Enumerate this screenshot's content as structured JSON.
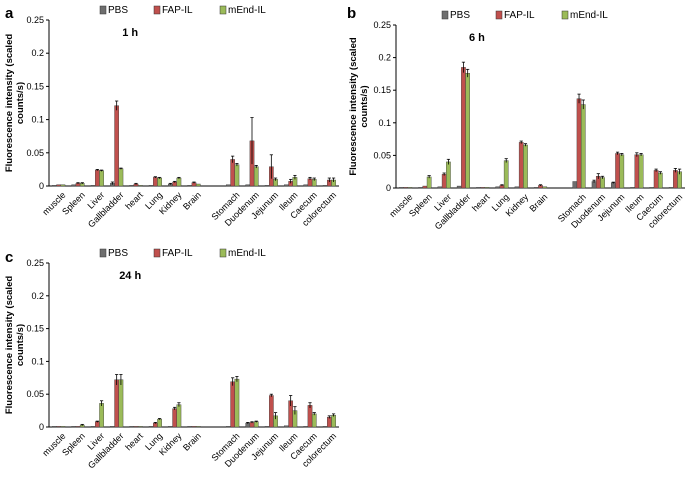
{
  "chart_data": [
    {
      "type": "bar",
      "panel": "a",
      "title": "1 h",
      "ylabel": "Fluorescence intensity (scaled counts/s)",
      "ylim": [
        0,
        0.25
      ],
      "yticks": [
        "0",
        "0.05",
        "0.1",
        "0.15",
        "0.2",
        "0.25"
      ],
      "categories": [
        "muscle",
        "Spleen",
        "Liver",
        "Gallbladder",
        "heart",
        "Lung",
        "Kidney",
        "Brain",
        "",
        "Stomach",
        "Duodenum",
        "Jejunum",
        "Ileum",
        "Caecum",
        "colorectum"
      ],
      "series": [
        {
          "name": "PBS",
          "color": "#6e6e6e",
          "values": [
            0.001,
            0.002,
            0.001,
            0.004,
            0.001,
            0.001,
            0.003,
            0.001,
            null,
            0.002,
            0.002,
            0.001,
            0.002,
            0.002,
            0.001
          ],
          "errors": [
            0,
            0,
            0,
            0.002,
            0,
            0,
            0.001,
            0,
            null,
            0,
            0,
            0,
            0,
            0,
            0
          ]
        },
        {
          "name": "FAP-IL",
          "color": "#c0504d",
          "values": [
            0.002,
            0.004,
            0.024,
            0.121,
            0.003,
            0.013,
            0.006,
            0.005,
            null,
            0.04,
            0.068,
            0.029,
            0.007,
            0.011,
            0.009
          ],
          "errors": [
            0,
            0.001,
            0.001,
            0.007,
            0.001,
            0.001,
            0.001,
            0.001,
            null,
            0.005,
            0.035,
            0.018,
            0.003,
            0.002,
            0.003
          ]
        },
        {
          "name": "mEnd-IL",
          "color": "#9bbb59",
          "values": [
            0.002,
            0.004,
            0.023,
            0.026,
            0.001,
            0.012,
            0.012,
            0.003,
            null,
            0.032,
            0.029,
            0.01,
            0.013,
            0.01,
            0.009
          ],
          "errors": [
            0,
            0.001,
            0.001,
            0.001,
            0,
            0.001,
            0.001,
            0,
            null,
            0.002,
            0.002,
            0.002,
            0.003,
            0.002,
            0.003
          ]
        }
      ],
      "legend": [
        "PBS",
        "FAP-IL",
        "mEnd-IL"
      ]
    },
    {
      "type": "bar",
      "panel": "b",
      "title": "6 h",
      "ylabel": "Fluorescence intensity (scaled counts/s)",
      "ylim": [
        0,
        0.25
      ],
      "yticks": [
        "0",
        "0.05",
        "0.1",
        "0.15",
        "0.2",
        "0.25"
      ],
      "categories": [
        "muscle",
        "Spleen",
        "Liver",
        "Gallbladder",
        "heart",
        "Lung",
        "Kidney",
        "Brain",
        "",
        "Stomach",
        "Duodenum",
        "Jejunum",
        "Ileum",
        "Caecum",
        "colorectum"
      ],
      "series": [
        {
          "name": "PBS",
          "color": "#6e6e6e",
          "values": [
            0.001,
            0.001,
            0.002,
            0.003,
            0.001,
            0.002,
            0.002,
            0.001,
            null,
            0.01,
            0.01,
            0.008,
            0.001,
            0.001,
            0.001
          ],
          "errors": [
            0,
            0,
            0,
            0,
            0,
            0,
            0,
            0,
            null,
            0,
            0.002,
            0.001,
            0,
            0,
            0
          ]
        },
        {
          "name": "FAP-IL",
          "color": "#c0504d",
          "values": [
            0.001,
            0.003,
            0.021,
            0.185,
            0.001,
            0.004,
            0.07,
            0.004,
            null,
            0.137,
            0.018,
            0.053,
            0.051,
            0.027,
            0.027
          ],
          "errors": [
            0,
            0,
            0.002,
            0.008,
            0,
            0.001,
            0.002,
            0.001,
            null,
            0.007,
            0.004,
            0.002,
            0.003,
            0.002,
            0.003
          ]
        },
        {
          "name": "mEnd-IL",
          "color": "#9bbb59",
          "values": [
            0.001,
            0.017,
            0.04,
            0.176,
            0.001,
            0.042,
            0.066,
            0.002,
            null,
            0.128,
            0.016,
            0.051,
            0.051,
            0.023,
            0.025
          ],
          "errors": [
            0,
            0.002,
            0.004,
            0.006,
            0,
            0.003,
            0.002,
            0,
            null,
            0.007,
            0.002,
            0.002,
            0.002,
            0.002,
            0.004
          ]
        }
      ],
      "legend": [
        "PBS",
        "FAP-IL",
        "mEnd-IL"
      ]
    },
    {
      "type": "bar",
      "panel": "c",
      "title": "24 h",
      "ylabel": "Fluorescence intensity (scaled counts/s)",
      "ylim": [
        0,
        0.25
      ],
      "yticks": [
        "0",
        "0.05",
        "0.1",
        "0.15",
        "0.2",
        "0.25"
      ],
      "categories": [
        "muscle",
        "Spleen",
        "Liver",
        "Gallbladder",
        "heart",
        "Lung",
        "Kidney",
        "Brain",
        "",
        "Stomach",
        "Duodenum",
        "Jejunum",
        "Ileum",
        "Caecum",
        "colorectum"
      ],
      "series": [
        {
          "name": "PBS",
          "color": "#6e6e6e",
          "values": [
            0.001,
            0.001,
            0.001,
            0.001,
            0.001,
            0.001,
            0.001,
            0.001,
            null,
            0.001,
            0.006,
            0.001,
            0.002,
            0.001,
            0.001
          ],
          "errors": [
            0,
            0,
            0,
            0,
            0,
            0,
            0,
            0,
            null,
            0,
            0.001,
            0,
            0,
            0,
            0
          ]
        },
        {
          "name": "FAP-IL",
          "color": "#c0504d",
          "values": [
            0.001,
            0.001,
            0.008,
            0.072,
            0.001,
            0.006,
            0.028,
            0.001,
            null,
            0.069,
            0.007,
            0.048,
            0.04,
            0.033,
            0.015
          ],
          "errors": [
            0,
            0,
            0.001,
            0.008,
            0,
            0.001,
            0.002,
            0,
            null,
            0.006,
            0.001,
            0.002,
            0.008,
            0.004,
            0.002
          ]
        },
        {
          "name": "mEnd-IL",
          "color": "#9bbb59",
          "values": [
            0.001,
            0.003,
            0.036,
            0.072,
            0.001,
            0.012,
            0.034,
            0.001,
            null,
            0.073,
            0.008,
            0.017,
            0.025,
            0.02,
            0.018
          ],
          "errors": [
            0,
            0.001,
            0.004,
            0.008,
            0,
            0.001,
            0.003,
            0,
            null,
            0.004,
            0.001,
            0.005,
            0.006,
            0.002,
            0.002
          ]
        }
      ],
      "legend": [
        "PBS",
        "FAP-IL",
        "mEnd-IL"
      ]
    }
  ]
}
